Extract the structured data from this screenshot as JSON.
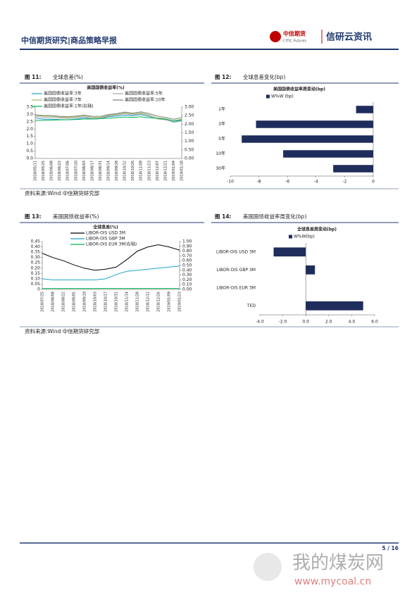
{
  "header": {
    "title": "中信期货研究|商品策略早报",
    "logo_cn": "中信期货",
    "logo_en": "CITIC Futures",
    "brand": "信研云资讯"
  },
  "figures": [
    {
      "label": "图 11:",
      "caption": "全球息差(%)"
    },
    {
      "label": "图 12:",
      "caption": "全球息差变化(bp)"
    },
    {
      "label": "图 13:",
      "caption": "美国国债收益率(%)"
    },
    {
      "label": "图 14:",
      "caption": "美国国债收益率周变化(bp)"
    }
  ],
  "sources": [
    "资料来源:Wind 中信期货研究部",
    "资料来源:Wind 中信期货研究部"
  ],
  "chart_data": [
    {
      "type": "line",
      "title": "美国国债收益率(%)",
      "categories": [
        "2018/05/11",
        "2018/05/25",
        "2018/06/08",
        "2018/06/22",
        "2018/07/06",
        "2018/07/20",
        "2018/08/03",
        "2018/08/17",
        "2018/08/31",
        "2018/09/14",
        "2018/09/28",
        "2018/10/12",
        "2018/10/26",
        "2018/11/09",
        "2018/11/23",
        "2018/12/07",
        "2018/12/21",
        "2019/01/04",
        "2019/01/18"
      ],
      "series": [
        {
          "name": "美国国债收益率:3年",
          "color": "#2a9bd0",
          "values": [
            2.76,
            2.68,
            2.68,
            2.65,
            2.63,
            2.68,
            2.77,
            2.68,
            2.71,
            2.85,
            2.88,
            2.95,
            2.91,
            2.98,
            2.86,
            2.71,
            2.64,
            2.47,
            2.56
          ]
        },
        {
          "name": "美国国债收益率:5年",
          "color": "#a6a6a6",
          "values": [
            2.88,
            2.8,
            2.8,
            2.76,
            2.72,
            2.76,
            2.85,
            2.74,
            2.74,
            2.9,
            2.95,
            3.04,
            2.97,
            3.05,
            2.91,
            2.7,
            2.63,
            2.5,
            2.6
          ]
        },
        {
          "name": "美国国债收益率:7年",
          "color": "#9bbb59",
          "values": [
            2.95,
            2.88,
            2.88,
            2.82,
            2.79,
            2.83,
            2.92,
            2.8,
            2.8,
            2.94,
            3.0,
            3.1,
            3.03,
            3.1,
            2.98,
            2.79,
            2.7,
            2.57,
            2.67
          ]
        },
        {
          "name": "美国国债收益率:10年",
          "color": "#7f7f7f",
          "values": [
            2.97,
            2.93,
            2.92,
            2.87,
            2.84,
            2.88,
            2.95,
            2.87,
            2.86,
            2.99,
            3.06,
            3.16,
            3.08,
            3.18,
            3.06,
            2.89,
            2.79,
            2.67,
            2.78
          ]
        },
        {
          "name": "美国国债收益率:1年(右轴)",
          "color": "#00b050",
          "axis": "y2",
          "values": [
            2.22,
            2.23,
            2.24,
            2.25,
            2.26,
            2.27,
            2.3,
            2.3,
            2.32,
            2.35,
            2.38,
            2.42,
            2.4,
            2.43,
            2.38,
            2.33,
            2.3,
            2.2,
            2.25
          ]
        }
      ],
      "ylim": [
        0,
        3.5
      ],
      "yticks": [
        {
          "value": 0,
          "label": "0.0"
        },
        0.5,
        {
          "value": 1,
          "label": "1.0"
        },
        1.5,
        {
          "value": 2,
          "label": "2.0"
        },
        2.5,
        {
          "value": 3,
          "label": "3.0"
        },
        3.5
      ],
      "y2lim": [
        0,
        3
      ],
      "y2ticks": [
        {
          "value": 0,
          "label": "0.00"
        },
        {
          "value": 0.5,
          "label": "0.50"
        },
        {
          "value": 1,
          "label": "1.00"
        },
        {
          "value": 1.5,
          "label": "1.50"
        },
        {
          "value": 2,
          "label": "2.00"
        },
        {
          "value": 2.5,
          "label": "2.50"
        },
        {
          "value": 3,
          "label": "3.00"
        }
      ]
    },
    {
      "type": "hbar",
      "title": "美国国债收益率周变动(bp)",
      "categories": [
        "1年",
        "3年",
        "5年",
        "10年",
        "30年"
      ],
      "series": [
        {
          "name": "W%W (bp)",
          "color": "#1f2d5c",
          "values": [
            -1.2,
            -8.2,
            -9.2,
            -6.3,
            -2.8
          ]
        }
      ],
      "xlim": [
        -10,
        0
      ],
      "xticks": [
        -10,
        -8,
        -6,
        -4,
        -2,
        0
      ]
    },
    {
      "type": "line",
      "title": "全球息差(%)",
      "categories": [
        "2018/07/25",
        "2018/08/08",
        "2018/08/22",
        "2018/09/05",
        "2018/09/19",
        "2018/10/03",
        "2018/10/17",
        "2018/10/31",
        "2018/11/14",
        "2018/11/28",
        "2018/12/12",
        "2018/12/26",
        "2019/01/09",
        "2019/01/23"
      ],
      "series": [
        {
          "name": "LIBOR-OIS USD 3M",
          "color": "#000000",
          "values": [
            0.34,
            0.3,
            0.27,
            0.23,
            0.2,
            0.18,
            0.19,
            0.21,
            0.28,
            0.36,
            0.4,
            0.42,
            0.4,
            0.37
          ]
        },
        {
          "name": "LIBOR-OIS GBP 3M",
          "color": "#1fa5c8",
          "values": [
            0.1,
            0.09,
            0.09,
            0.09,
            0.09,
            0.09,
            0.1,
            0.14,
            0.17,
            0.18,
            0.19,
            0.2,
            0.21,
            0.22
          ]
        },
        {
          "name": "LIBOR-OIS EUR 3M(右轴)",
          "color": "#00b050",
          "axis": "y2",
          "values": [
            0.02,
            0.02,
            0.02,
            0.02,
            0.02,
            0.02,
            0.02,
            0.02,
            0.02,
            0.02,
            0.02,
            0.02,
            0.02,
            0.02
          ]
        }
      ],
      "ylim": [
        0,
        0.45
      ],
      "yticks": [
        0,
        0.05,
        {
          "value": 0.1,
          "label": "0.10"
        },
        0.15,
        {
          "value": 0.2,
          "label": "0.20"
        },
        0.25,
        {
          "value": 0.3,
          "label": "0.30"
        },
        0.35,
        {
          "value": 0.4,
          "label": "0.40"
        },
        0.45
      ],
      "y2lim": [
        0,
        1
      ],
      "y2ticks": [
        {
          "value": 0,
          "label": "0.00"
        },
        {
          "value": 0.1,
          "label": "0.10"
        },
        {
          "value": 0.2,
          "label": "0.20"
        },
        {
          "value": 0.3,
          "label": "0.30"
        },
        {
          "value": 0.4,
          "label": "0.40"
        },
        {
          "value": 0.5,
          "label": "0.50"
        },
        {
          "value": 0.6,
          "label": "0.60"
        },
        {
          "value": 0.7,
          "label": "0.70"
        },
        {
          "value": 0.8,
          "label": "0.80"
        },
        {
          "value": 0.9,
          "label": "0.90"
        },
        {
          "value": 1,
          "label": "1.00"
        }
      ]
    },
    {
      "type": "hbar",
      "title": "全球息差周变动(bp)",
      "categories": [
        "LIBOR-OIS USD 3M",
        "LIBOR-OIS GBP 3M",
        "LIBOR-OIS EUR 3M",
        "TED"
      ],
      "series": [
        {
          "name": "W%W(bp)",
          "color": "#1f2d5c",
          "values": [
            -2.8,
            0.8,
            0,
            5.0
          ]
        }
      ],
      "xlim": [
        -4,
        6
      ],
      "xticks": [
        {
          "value": -4,
          "label": "-4.0"
        },
        {
          "value": -2,
          "label": "-2.0"
        },
        {
          "value": 0,
          "label": "0.0"
        },
        {
          "value": 2,
          "label": "2.0"
        },
        {
          "value": 4,
          "label": "4.0"
        },
        {
          "value": 6,
          "label": "6.0"
        }
      ]
    }
  ],
  "footer": {
    "page": "5 / 16"
  },
  "watermark": {
    "name": "我的煤炭网",
    "url": "www.mycoal.cn"
  }
}
